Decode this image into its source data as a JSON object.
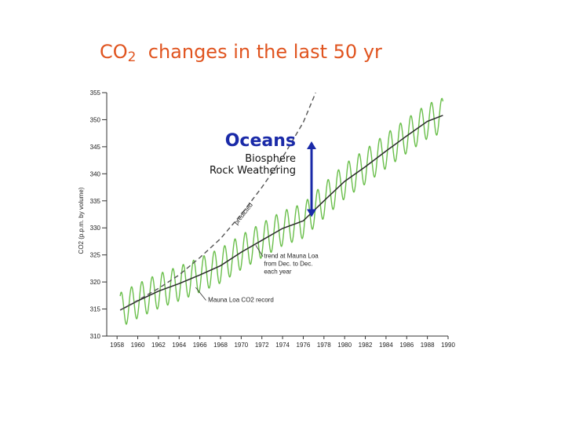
{
  "title": {
    "main": "CO",
    "subscript": "2",
    "rest": "changes in the last 50 yr"
  },
  "chart_data": {
    "type": "line",
    "ylabel": "CO2 (p.p.m. by volume)",
    "xlim": [
      1957,
      1990
    ],
    "ylim": [
      310,
      355
    ],
    "x_ticks": [
      1958,
      1960,
      1962,
      1964,
      1966,
      1968,
      1970,
      1972,
      1974,
      1976,
      1978,
      1980,
      1982,
      1984,
      1986,
      1988,
      1990
    ],
    "y_ticks": [
      310,
      315,
      320,
      325,
      330,
      335,
      340,
      345,
      350,
      355
    ],
    "series": [
      {
        "name": "Mauna Loa CO2 record",
        "style": "seasonal",
        "color": "#6abf4b",
        "seasonal_amplitude": 3.2
      },
      {
        "name": "trend at Mauna Loa from Dec. to Dec. each year",
        "style": "trend",
        "color": "#2a2a2a",
        "x": [
          1958.3,
          1960,
          1962,
          1964,
          1966,
          1968,
          1970,
          1972,
          1974,
          1976,
          1978,
          1980,
          1982,
          1984,
          1986,
          1988,
          1989.5
        ],
        "y": [
          314.8,
          316.5,
          318.3,
          319.7,
          321.3,
          323.0,
          325.5,
          327.7,
          329.9,
          331.3,
          335.0,
          338.6,
          341.3,
          344.2,
          347.0,
          349.7,
          350.8
        ]
      },
      {
        "name": "predicted",
        "style": "dashed",
        "color": "#555555",
        "x": [
          1958.3,
          1960,
          1962,
          1964,
          1966,
          1968,
          1970,
          1972,
          1974,
          1976,
          1977.2
        ],
        "y": [
          314.8,
          316.6,
          318.8,
          321.3,
          324.5,
          328.0,
          332.5,
          337.5,
          343.0,
          349.5,
          355
        ]
      }
    ],
    "annotations": {
      "predicted": "predicted",
      "trend": [
        "trend at Mauna Loa",
        "from Dec. to Dec.",
        "each year"
      ],
      "record": "Mauna Loa CO2 record",
      "oceans": "Oceans",
      "biosphere": "Biosphere",
      "rock": "Rock Weathering"
    },
    "arrow": {
      "x": 1976.8,
      "y_from": 332,
      "y_to": 346,
      "color": "#1a2aa8"
    },
    "grid": false
  }
}
